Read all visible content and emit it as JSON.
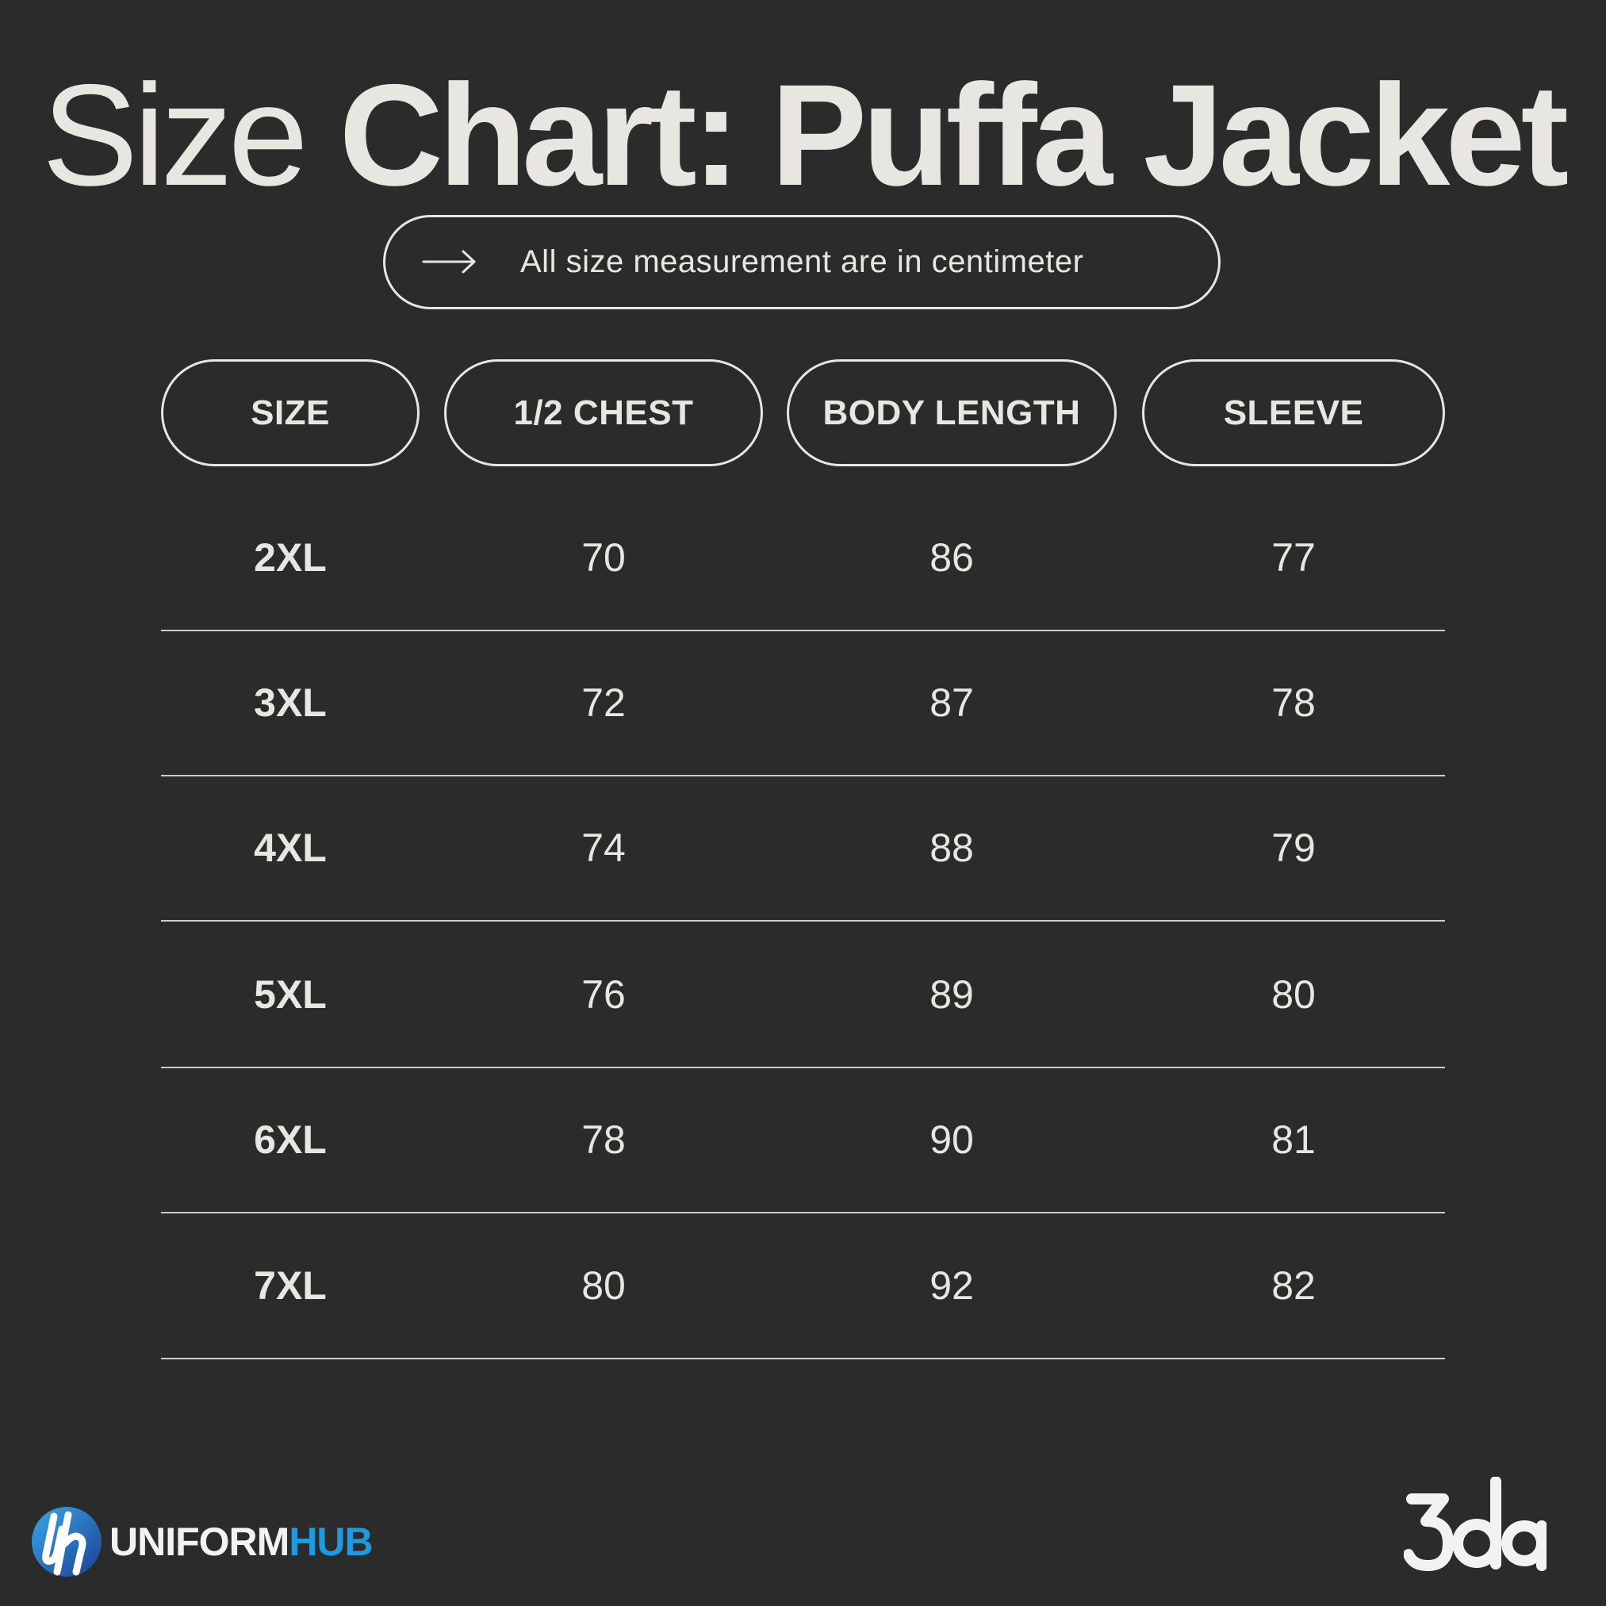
{
  "title": {
    "light": "Size",
    "bold": "Chart:  Puffa Jacket"
  },
  "note": {
    "icon": "arrow-right-icon",
    "text": "All size measurement are in centimeter"
  },
  "table": {
    "headers": [
      "SIZE",
      "1/2 CHEST",
      "BODY LENGTH",
      "SLEEVE"
    ],
    "rows": [
      [
        "2XL",
        "70",
        "86",
        "77"
      ],
      [
        "3XL",
        "72",
        "87",
        "78"
      ],
      [
        "4XL",
        "74",
        "88",
        "79"
      ],
      [
        "5XL",
        "76",
        "89",
        "80"
      ],
      [
        "6XL",
        "78",
        "90",
        "81"
      ],
      [
        "7XL",
        "80",
        "92",
        "82"
      ]
    ]
  },
  "brand_left": {
    "word_part1": "UNIFORM",
    "word_part2": "HUB",
    "accent": "#1e9be0"
  },
  "brand_right": {
    "text": "3da"
  },
  "colors": {
    "background": "#2b2b2b",
    "foreground": "#e8e6e1"
  }
}
